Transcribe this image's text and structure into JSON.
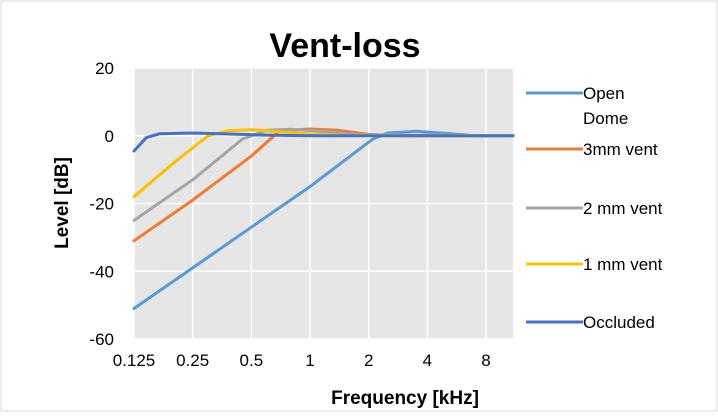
{
  "chart_data": {
    "type": "line",
    "title": "Vent-loss",
    "xlabel": "Frequency [kHz]",
    "ylabel": "Level [dB]",
    "x_scale": "log2",
    "xlim": [
      0.125,
      11
    ],
    "ylim": [
      -60,
      20
    ],
    "x_ticks": [
      0.125,
      0.25,
      0.5,
      1,
      2,
      4,
      8
    ],
    "x_tick_labels": [
      "0.125",
      "0.25",
      "0.5",
      "1",
      "2",
      "4",
      "8"
    ],
    "y_ticks": [
      20,
      0,
      -20,
      -40,
      -60
    ],
    "y_tick_labels": [
      "20",
      "0",
      "-20",
      "-40",
      "-60"
    ],
    "grid": true,
    "plot_background": "#e6e6e6",
    "grid_color": "#ffffff",
    "legend_position": "right",
    "series": [
      {
        "name": "Open Dome",
        "color": "#5b9bd5",
        "points": [
          [
            0.125,
            -51
          ],
          [
            0.25,
            -39
          ],
          [
            0.5,
            -27
          ],
          [
            1,
            -15
          ],
          [
            2.1,
            -1
          ],
          [
            2.5,
            0.8
          ],
          [
            3.5,
            1.3
          ],
          [
            5,
            0.7
          ],
          [
            7,
            0
          ],
          [
            11,
            0
          ]
        ]
      },
      {
        "name": "3mm vent",
        "color": "#ed7d31",
        "points": [
          [
            0.125,
            -31
          ],
          [
            0.25,
            -19
          ],
          [
            0.5,
            -6
          ],
          [
            0.7,
            1.5
          ],
          [
            1,
            2
          ],
          [
            1.4,
            1.6
          ],
          [
            2,
            0.4
          ],
          [
            3,
            0
          ],
          [
            11,
            0
          ]
        ]
      },
      {
        "name": "2 mm vent",
        "color": "#a5a5a5",
        "points": [
          [
            0.125,
            -25
          ],
          [
            0.25,
            -13
          ],
          [
            0.45,
            -1
          ],
          [
            0.6,
            1.6
          ],
          [
            0.8,
            1.9
          ],
          [
            1.2,
            1.2
          ],
          [
            1.8,
            0.3
          ],
          [
            11,
            0
          ]
        ]
      },
      {
        "name": "1 mm vent",
        "color": "#ffc000",
        "points": [
          [
            0.125,
            -18
          ],
          [
            0.2,
            -8
          ],
          [
            0.3,
            0
          ],
          [
            0.38,
            1.5
          ],
          [
            0.5,
            1.8
          ],
          [
            0.7,
            1.2
          ],
          [
            1,
            0.5
          ],
          [
            1.5,
            0.1
          ],
          [
            11,
            0
          ]
        ]
      },
      {
        "name": "Occluded",
        "color": "#4472c4",
        "points": [
          [
            0.125,
            -4.5
          ],
          [
            0.145,
            -0.5
          ],
          [
            0.17,
            0.6
          ],
          [
            0.25,
            0.8
          ],
          [
            0.4,
            0.5
          ],
          [
            0.6,
            0.2
          ],
          [
            1,
            0
          ],
          [
            11,
            0
          ]
        ]
      }
    ],
    "legend_entries": [
      {
        "label_lines": [
          "Open",
          "Dome"
        ],
        "color": "#5b9bd5"
      },
      {
        "label_lines": [
          "3mm vent"
        ],
        "color": "#ed7d31"
      },
      {
        "label_lines": [
          "2 mm vent"
        ],
        "color": "#a5a5a5"
      },
      {
        "label_lines": [
          "1 mm vent"
        ],
        "color": "#ffc000"
      },
      {
        "label_lines": [
          "Occluded"
        ],
        "color": "#4472c4"
      }
    ]
  }
}
